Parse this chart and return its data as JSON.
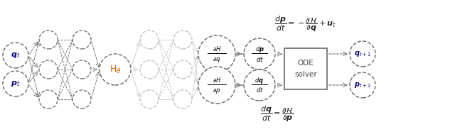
{
  "fig_width": 6.4,
  "fig_height": 1.96,
  "dpi": 100,
  "bg_color": "#ffffff",
  "dark": "#666666",
  "light": "#bbbbbb",
  "solid_line": "#888888",
  "H_theta_color": "#cc6600",
  "label_color": "#000080",
  "text_color": "#333333",
  "eq_color": "#222222",
  "ode_color": "#444444"
}
